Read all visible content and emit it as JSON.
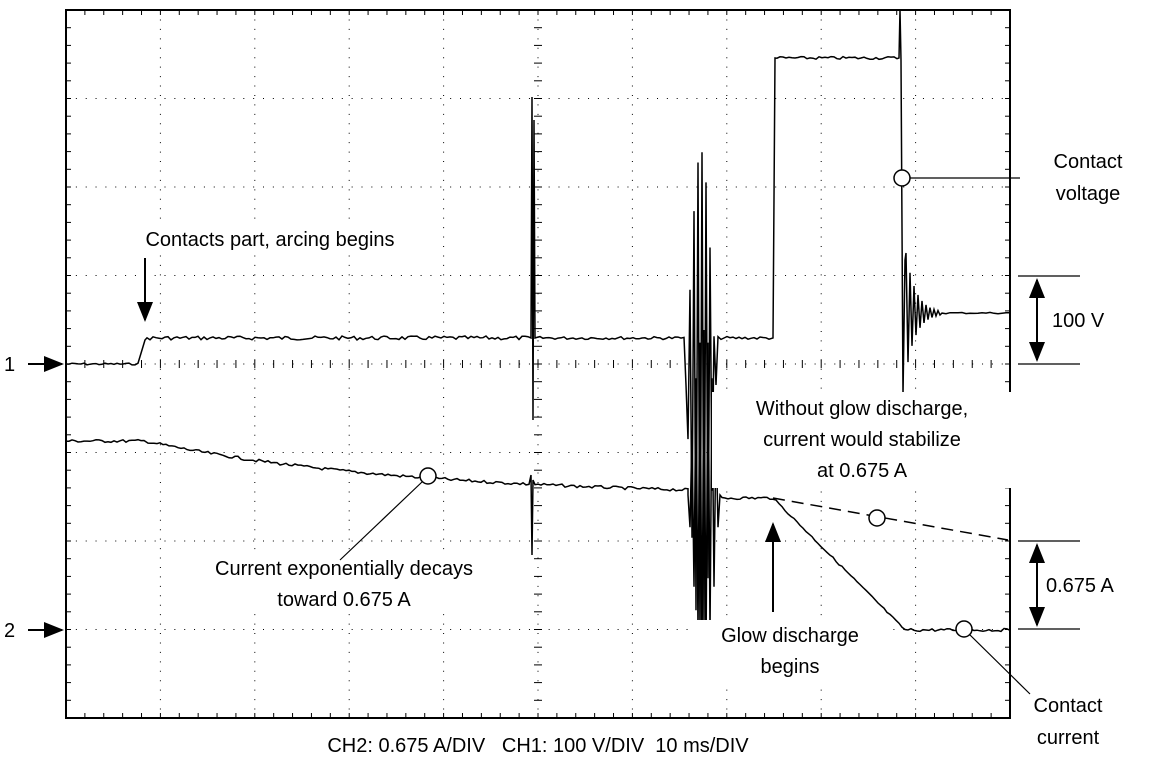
{
  "labels": {
    "arcing": "Contacts part, arcing begins",
    "contact_voltage": [
      "Contact",
      "voltage"
    ],
    "volt_scale": "100 V",
    "channel1": "1",
    "channel2": "2",
    "without_glow": [
      "Without glow discharge,",
      "current would stabilize",
      "at 0.675 A"
    ],
    "decay": [
      "Current exponentially decays",
      "toward 0.675 A"
    ],
    "glow_begins": [
      "Glow discharge",
      "begins"
    ],
    "amp_scale": "0.675 A",
    "contact_current": [
      "Contact",
      "current"
    ]
  },
  "footer": "CH2: 0.675 A/DIV   CH1: 100 V/DIV  10 ms/DIV"
}
